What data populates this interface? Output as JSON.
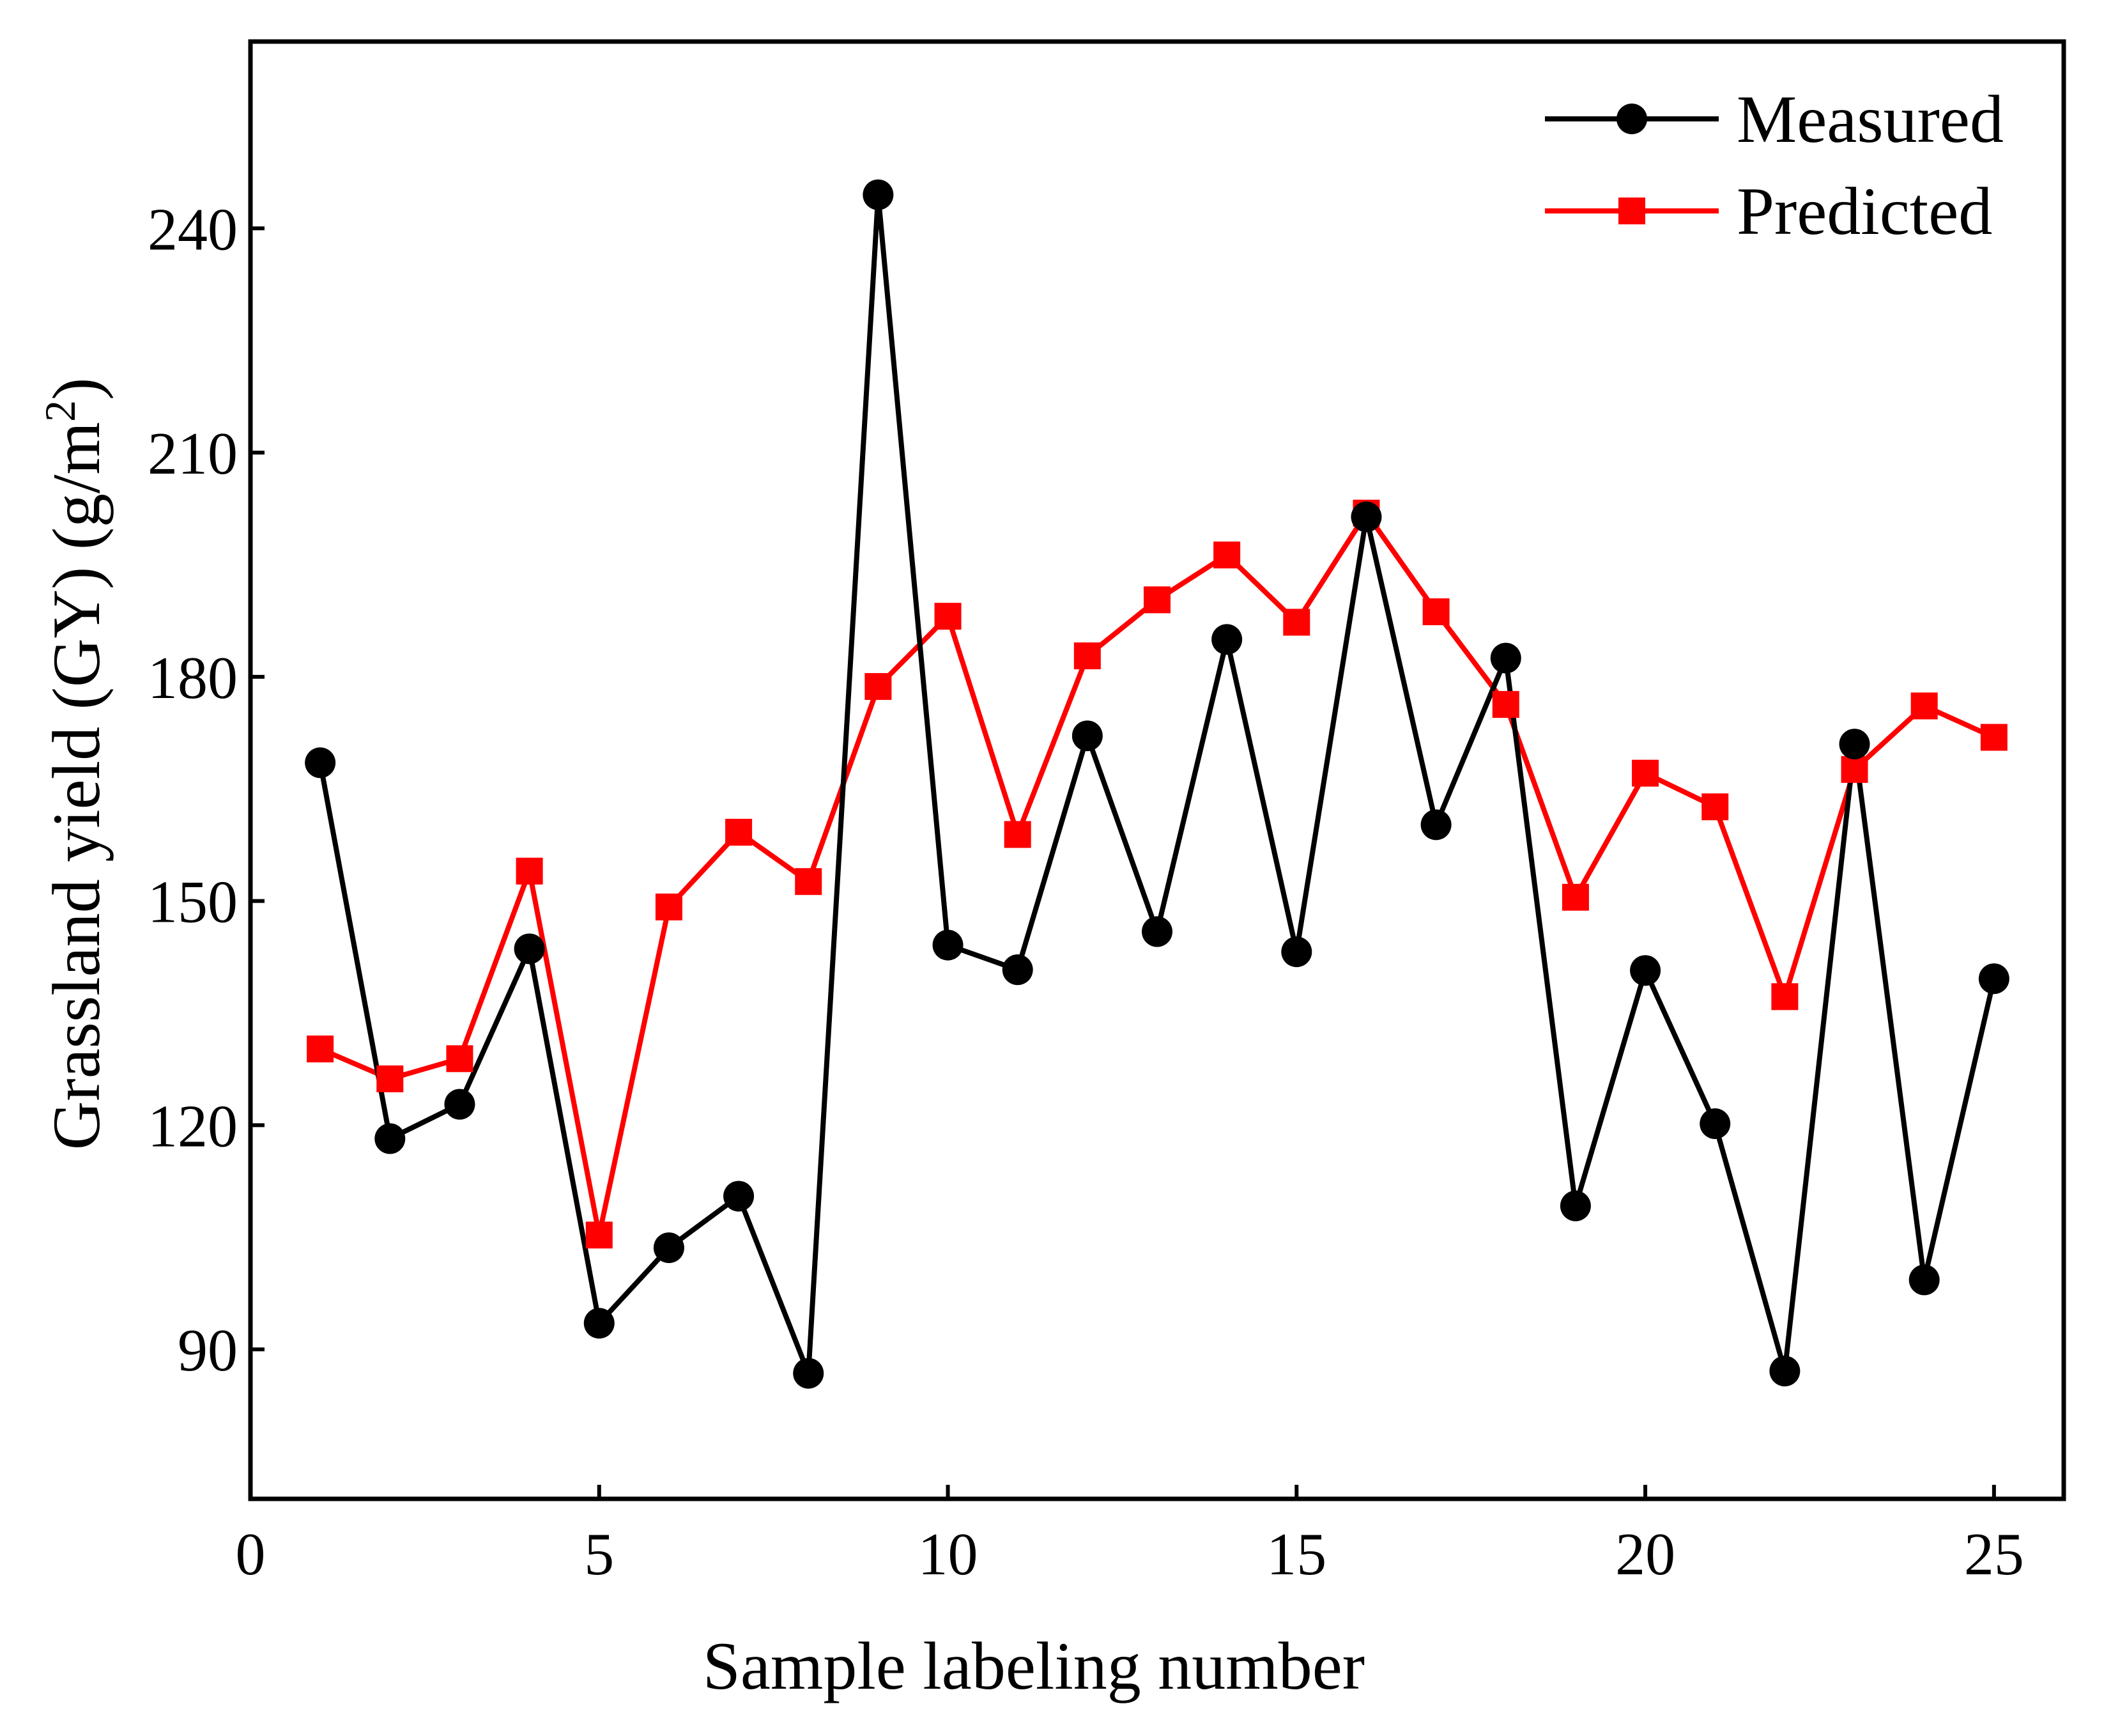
{
  "colors": {
    "measured": "#000000",
    "predicted": "#ff0000",
    "axis": "#000000",
    "background": "#ffffff"
  },
  "chart_data": {
    "type": "line",
    "title": "",
    "xlabel": "Sample labeling number",
    "ylabel_main": "Grassland yield (GY) (g/m",
    "ylabel_sup": "2",
    "ylabel_close": ")",
    "xlim": [
      0,
      26
    ],
    "ylim": [
      70,
      265
    ],
    "xticks": [
      0,
      5,
      10,
      15,
      20,
      25
    ],
    "xtick_labels": [
      "0",
      "5",
      "10",
      "15",
      "20",
      "25"
    ],
    "yticks": [
      90,
      120,
      150,
      180,
      210,
      240
    ],
    "ytick_labels": [
      "90",
      "120",
      "150",
      "180",
      "210",
      "240"
    ],
    "grid": false,
    "legend_position": "top-right",
    "x": [
      1,
      2,
      3,
      4,
      5,
      6,
      7,
      8,
      9,
      10,
      11,
      12,
      13,
      14,
      15,
      16,
      17,
      18,
      19,
      20,
      21,
      22,
      23,
      24,
      25
    ],
    "series": [
      {
        "name": "Measured",
        "marker": "circle",
        "color": "#000000",
        "values": [
          168.5,
          118.2,
          122.8,
          143.6,
          93.5,
          103.6,
          110.5,
          86.8,
          244.5,
          144.1,
          140.8,
          172.1,
          145.9,
          185.0,
          143.2,
          201.4,
          160.2,
          182.5,
          109.2,
          140.7,
          120.2,
          87.1,
          171.0,
          99.3,
          139.6
        ]
      },
      {
        "name": "Predicted",
        "marker": "square",
        "color": "#ff0000",
        "values": [
          130.2,
          126.2,
          128.9,
          154.0,
          105.3,
          149.2,
          159.2,
          152.6,
          178.7,
          188.1,
          158.9,
          182.8,
          190.3,
          196.3,
          187.3,
          201.9,
          188.7,
          176.3,
          150.5,
          167.1,
          162.6,
          137.2,
          167.6,
          176.1,
          171.9
        ]
      }
    ]
  }
}
